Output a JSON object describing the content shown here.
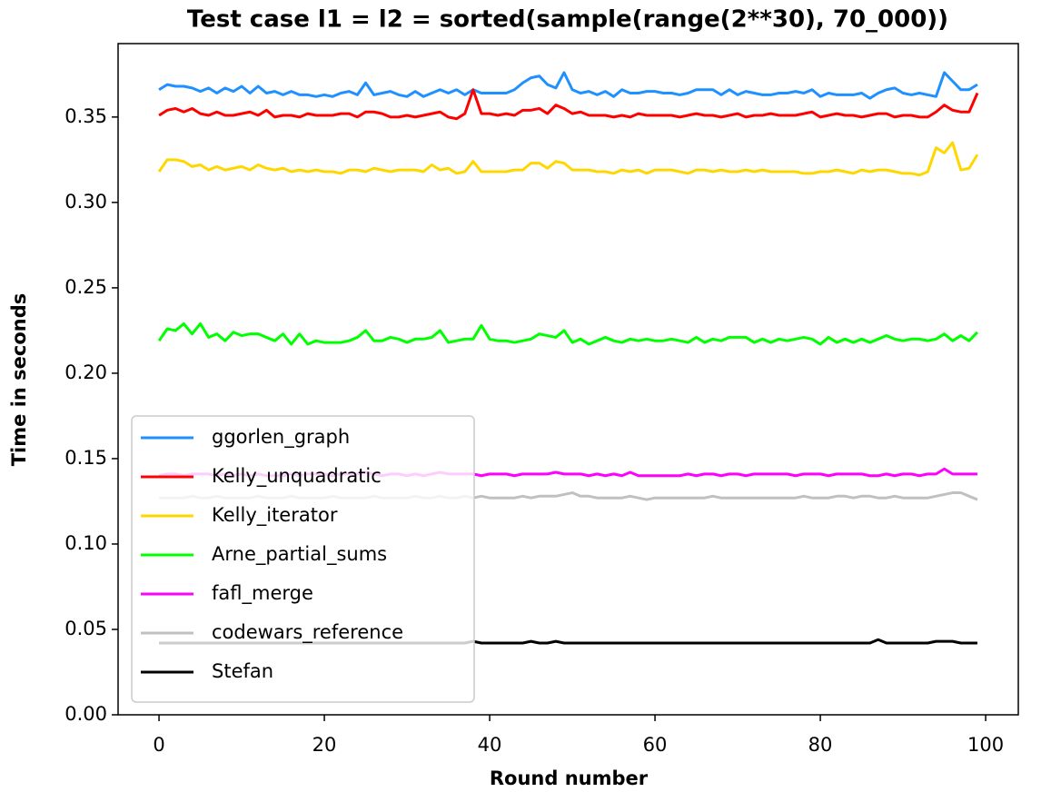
{
  "chart_data": {
    "type": "line",
    "title": "Test case l1 = l2 = sorted(sample(range(2**30), 70_000))",
    "x_label": "Round number",
    "y_label": "Time in seconds",
    "x": [
      0,
      1,
      2,
      3,
      4,
      5,
      6,
      7,
      8,
      9,
      10,
      11,
      12,
      13,
      14,
      15,
      16,
      17,
      18,
      19,
      20,
      21,
      22,
      23,
      24,
      25,
      26,
      27,
      28,
      29,
      30,
      31,
      32,
      33,
      34,
      35,
      36,
      37,
      38,
      39,
      40,
      41,
      42,
      43,
      44,
      45,
      46,
      47,
      48,
      49,
      50,
      51,
      52,
      53,
      54,
      55,
      56,
      57,
      58,
      59,
      60,
      61,
      62,
      63,
      64,
      65,
      66,
      67,
      68,
      69,
      70,
      71,
      72,
      73,
      74,
      75,
      76,
      77,
      78,
      79,
      80,
      81,
      82,
      83,
      84,
      85,
      86,
      87,
      88,
      89,
      90,
      91,
      92,
      93,
      94,
      95,
      96,
      97,
      98,
      99
    ],
    "xlim": [
      -4.95,
      103.95
    ],
    "xticks": [
      0,
      20,
      40,
      60,
      80,
      100
    ],
    "ylim": [
      0,
      0.393
    ],
    "yticks": [
      {
        "value": 0,
        "label": "0.00"
      },
      {
        "value": 0.05,
        "label": "0.05"
      },
      {
        "value": 0.1,
        "label": "0.10"
      },
      {
        "value": 0.15,
        "label": "0.15"
      },
      {
        "value": 0.2,
        "label": "0.20"
      },
      {
        "value": 0.25,
        "label": "0.25"
      },
      {
        "value": 0.3,
        "label": "0.30"
      },
      {
        "value": 0.35,
        "label": "0.35"
      }
    ],
    "grid": false,
    "legend": "lower left",
    "series": [
      {
        "name": "ggorlen_graph",
        "color": "#1e90ff",
        "values": [
          0.366,
          0.369,
          0.368,
          0.368,
          0.367,
          0.365,
          0.367,
          0.364,
          0.367,
          0.365,
          0.368,
          0.364,
          0.368,
          0.364,
          0.365,
          0.363,
          0.365,
          0.363,
          0.363,
          0.362,
          0.363,
          0.362,
          0.364,
          0.365,
          0.363,
          0.37,
          0.363,
          0.364,
          0.365,
          0.363,
          0.362,
          0.365,
          0.362,
          0.364,
          0.366,
          0.364,
          0.366,
          0.363,
          0.366,
          0.364,
          0.364,
          0.364,
          0.364,
          0.366,
          0.37,
          0.373,
          0.374,
          0.369,
          0.367,
          0.376,
          0.366,
          0.364,
          0.365,
          0.363,
          0.365,
          0.362,
          0.366,
          0.364,
          0.364,
          0.365,
          0.365,
          0.364,
          0.364,
          0.363,
          0.364,
          0.366,
          0.366,
          0.366,
          0.363,
          0.366,
          0.363,
          0.365,
          0.364,
          0.363,
          0.363,
          0.364,
          0.364,
          0.365,
          0.364,
          0.366,
          0.362,
          0.364,
          0.363,
          0.363,
          0.363,
          0.364,
          0.361,
          0.364,
          0.366,
          0.367,
          0.364,
          0.363,
          0.364,
          0.363,
          0.362,
          0.376,
          0.371,
          0.366,
          0.366,
          0.369
        ]
      },
      {
        "name": "Kelly_unquadratic",
        "color": "#ff0000",
        "values": [
          0.351,
          0.354,
          0.355,
          0.353,
          0.355,
          0.352,
          0.351,
          0.353,
          0.351,
          0.351,
          0.352,
          0.353,
          0.351,
          0.354,
          0.35,
          0.351,
          0.351,
          0.35,
          0.352,
          0.351,
          0.351,
          0.351,
          0.352,
          0.352,
          0.35,
          0.353,
          0.353,
          0.352,
          0.35,
          0.35,
          0.351,
          0.35,
          0.351,
          0.352,
          0.353,
          0.35,
          0.349,
          0.352,
          0.366,
          0.352,
          0.352,
          0.351,
          0.352,
          0.351,
          0.354,
          0.354,
          0.355,
          0.352,
          0.357,
          0.355,
          0.352,
          0.353,
          0.351,
          0.351,
          0.351,
          0.35,
          0.351,
          0.35,
          0.352,
          0.351,
          0.351,
          0.351,
          0.351,
          0.35,
          0.351,
          0.352,
          0.351,
          0.351,
          0.35,
          0.351,
          0.352,
          0.35,
          0.351,
          0.351,
          0.352,
          0.351,
          0.351,
          0.351,
          0.352,
          0.353,
          0.35,
          0.351,
          0.352,
          0.351,
          0.351,
          0.35,
          0.351,
          0.352,
          0.352,
          0.35,
          0.351,
          0.351,
          0.35,
          0.35,
          0.353,
          0.357,
          0.354,
          0.353,
          0.353,
          0.364
        ]
      },
      {
        "name": "Kelly_iterator",
        "color": "#ffd700",
        "values": [
          0.318,
          0.325,
          0.325,
          0.324,
          0.321,
          0.322,
          0.319,
          0.321,
          0.319,
          0.32,
          0.321,
          0.319,
          0.322,
          0.32,
          0.319,
          0.32,
          0.318,
          0.319,
          0.318,
          0.319,
          0.318,
          0.318,
          0.317,
          0.319,
          0.319,
          0.318,
          0.32,
          0.319,
          0.318,
          0.319,
          0.319,
          0.319,
          0.318,
          0.322,
          0.319,
          0.32,
          0.317,
          0.318,
          0.324,
          0.318,
          0.318,
          0.318,
          0.318,
          0.319,
          0.319,
          0.323,
          0.323,
          0.32,
          0.324,
          0.323,
          0.319,
          0.319,
          0.319,
          0.318,
          0.318,
          0.317,
          0.319,
          0.318,
          0.319,
          0.317,
          0.319,
          0.319,
          0.319,
          0.318,
          0.317,
          0.319,
          0.319,
          0.318,
          0.319,
          0.318,
          0.318,
          0.319,
          0.318,
          0.319,
          0.318,
          0.318,
          0.318,
          0.318,
          0.317,
          0.317,
          0.318,
          0.318,
          0.319,
          0.318,
          0.317,
          0.319,
          0.318,
          0.319,
          0.319,
          0.318,
          0.317,
          0.317,
          0.316,
          0.318,
          0.332,
          0.329,
          0.335,
          0.319,
          0.32,
          0.328
        ]
      },
      {
        "name": "Arne_partial_sums",
        "color": "#00ff00",
        "values": [
          0.219,
          0.226,
          0.225,
          0.229,
          0.223,
          0.229,
          0.221,
          0.223,
          0.219,
          0.224,
          0.222,
          0.223,
          0.223,
          0.221,
          0.219,
          0.223,
          0.217,
          0.223,
          0.217,
          0.219,
          0.218,
          0.218,
          0.218,
          0.219,
          0.221,
          0.225,
          0.219,
          0.219,
          0.221,
          0.22,
          0.218,
          0.22,
          0.22,
          0.221,
          0.225,
          0.218,
          0.219,
          0.22,
          0.22,
          0.228,
          0.22,
          0.219,
          0.219,
          0.218,
          0.219,
          0.22,
          0.223,
          0.222,
          0.221,
          0.225,
          0.218,
          0.22,
          0.217,
          0.219,
          0.221,
          0.219,
          0.218,
          0.22,
          0.219,
          0.22,
          0.219,
          0.219,
          0.22,
          0.219,
          0.218,
          0.221,
          0.218,
          0.22,
          0.219,
          0.221,
          0.221,
          0.221,
          0.218,
          0.22,
          0.218,
          0.22,
          0.219,
          0.22,
          0.221,
          0.22,
          0.217,
          0.221,
          0.218,
          0.22,
          0.218,
          0.22,
          0.218,
          0.22,
          0.222,
          0.22,
          0.219,
          0.22,
          0.22,
          0.219,
          0.22,
          0.223,
          0.219,
          0.222,
          0.219,
          0.224
        ]
      },
      {
        "name": "fafl_merge",
        "color": "#ff00ff",
        "values": [
          0.14,
          0.141,
          0.141,
          0.14,
          0.141,
          0.141,
          0.141,
          0.14,
          0.141,
          0.14,
          0.141,
          0.14,
          0.141,
          0.14,
          0.14,
          0.14,
          0.141,
          0.14,
          0.141,
          0.141,
          0.141,
          0.14,
          0.141,
          0.141,
          0.141,
          0.142,
          0.141,
          0.14,
          0.141,
          0.141,
          0.14,
          0.141,
          0.14,
          0.141,
          0.142,
          0.141,
          0.141,
          0.141,
          0.141,
          0.14,
          0.141,
          0.141,
          0.141,
          0.14,
          0.141,
          0.141,
          0.141,
          0.141,
          0.142,
          0.141,
          0.141,
          0.141,
          0.14,
          0.141,
          0.14,
          0.141,
          0.14,
          0.142,
          0.14,
          0.14,
          0.14,
          0.14,
          0.14,
          0.14,
          0.141,
          0.14,
          0.141,
          0.141,
          0.14,
          0.141,
          0.141,
          0.14,
          0.141,
          0.141,
          0.141,
          0.141,
          0.141,
          0.14,
          0.141,
          0.141,
          0.141,
          0.14,
          0.141,
          0.141,
          0.141,
          0.141,
          0.14,
          0.14,
          0.141,
          0.14,
          0.141,
          0.141,
          0.14,
          0.141,
          0.141,
          0.144,
          0.141,
          0.141,
          0.141,
          0.141
        ]
      },
      {
        "name": "codewars_reference",
        "color": "#c0c0c0",
        "values": [
          0.127,
          0.127,
          0.127,
          0.127,
          0.128,
          0.127,
          0.127,
          0.128,
          0.127,
          0.127,
          0.127,
          0.127,
          0.128,
          0.127,
          0.127,
          0.127,
          0.128,
          0.127,
          0.127,
          0.127,
          0.127,
          0.128,
          0.127,
          0.127,
          0.127,
          0.127,
          0.128,
          0.127,
          0.127,
          0.127,
          0.127,
          0.128,
          0.127,
          0.127,
          0.128,
          0.127,
          0.127,
          0.128,
          0.127,
          0.128,
          0.127,
          0.127,
          0.127,
          0.127,
          0.128,
          0.127,
          0.128,
          0.128,
          0.128,
          0.129,
          0.13,
          0.128,
          0.128,
          0.127,
          0.127,
          0.127,
          0.127,
          0.128,
          0.127,
          0.126,
          0.127,
          0.127,
          0.127,
          0.127,
          0.127,
          0.127,
          0.127,
          0.128,
          0.127,
          0.127,
          0.127,
          0.127,
          0.127,
          0.127,
          0.127,
          0.127,
          0.127,
          0.127,
          0.128,
          0.127,
          0.127,
          0.127,
          0.128,
          0.128,
          0.127,
          0.128,
          0.128,
          0.127,
          0.127,
          0.128,
          0.127,
          0.127,
          0.127,
          0.127,
          0.128,
          0.129,
          0.13,
          0.13,
          0.128,
          0.126
        ]
      },
      {
        "name": "Stefan",
        "color": "#000000",
        "values": [
          0.042,
          0.042,
          0.042,
          0.042,
          0.042,
          0.042,
          0.042,
          0.042,
          0.042,
          0.042,
          0.042,
          0.042,
          0.042,
          0.042,
          0.042,
          0.042,
          0.042,
          0.042,
          0.042,
          0.042,
          0.042,
          0.042,
          0.042,
          0.042,
          0.042,
          0.042,
          0.042,
          0.042,
          0.042,
          0.042,
          0.042,
          0.042,
          0.042,
          0.042,
          0.042,
          0.042,
          0.042,
          0.042,
          0.043,
          0.042,
          0.042,
          0.042,
          0.042,
          0.042,
          0.042,
          0.043,
          0.042,
          0.042,
          0.043,
          0.042,
          0.042,
          0.042,
          0.042,
          0.042,
          0.042,
          0.042,
          0.042,
          0.042,
          0.042,
          0.042,
          0.042,
          0.042,
          0.042,
          0.042,
          0.042,
          0.042,
          0.042,
          0.042,
          0.042,
          0.042,
          0.042,
          0.042,
          0.042,
          0.042,
          0.042,
          0.042,
          0.042,
          0.042,
          0.042,
          0.042,
          0.042,
          0.042,
          0.042,
          0.042,
          0.042,
          0.042,
          0.042,
          0.044,
          0.042,
          0.042,
          0.042,
          0.042,
          0.042,
          0.042,
          0.043,
          0.043,
          0.043,
          0.042,
          0.042,
          0.042
        ]
      }
    ]
  }
}
